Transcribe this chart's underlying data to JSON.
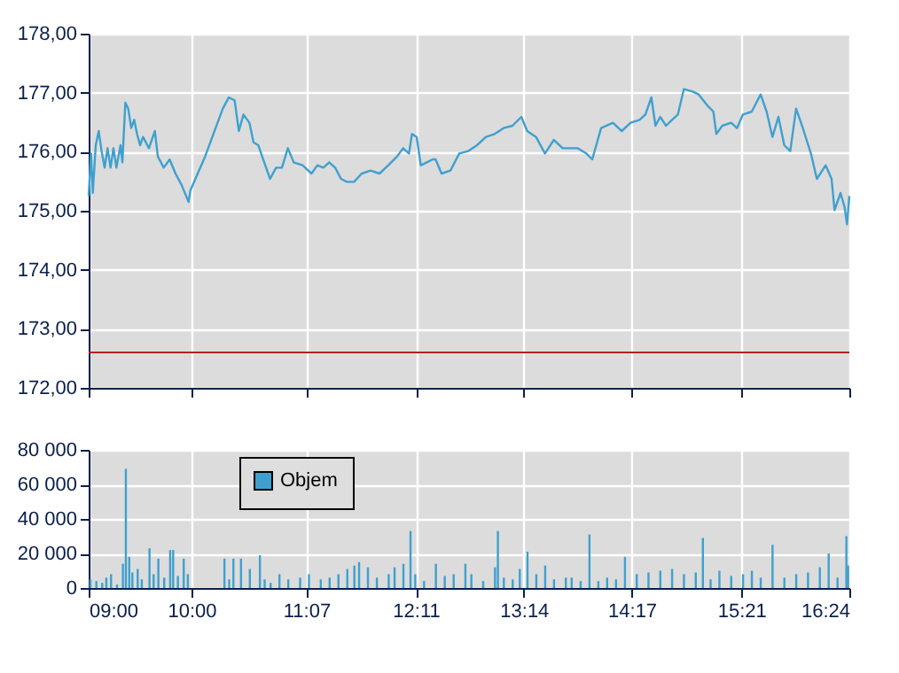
{
  "chart_data": [
    {
      "type": "line",
      "color": "#3fa0cf",
      "tick_labels": "y",
      "grid": true,
      "xlim": [
        9,
        16.4
      ],
      "xticks": [
        {
          "value": 9,
          "label": null
        },
        {
          "value": 10,
          "label": null
        },
        {
          "value": 11.1167,
          "label": null
        },
        {
          "value": 12.1833,
          "label": null
        },
        {
          "value": 13.2333,
          "label": null
        },
        {
          "value": 14.2833,
          "label": null
        },
        {
          "value": 15.35,
          "label": null
        },
        {
          "value": 16.4,
          "label": null
        }
      ],
      "ylim": [
        172,
        178
      ],
      "yticks": [
        {
          "value": 172,
          "label": "172,00"
        },
        {
          "value": 173,
          "label": "173,00"
        },
        {
          "value": 174,
          "label": "174,00"
        },
        {
          "value": 175,
          "label": "175,00"
        },
        {
          "value": 176,
          "label": "176,00"
        },
        {
          "value": 177,
          "label": "177,00"
        },
        {
          "value": 178,
          "label": "178,00"
        }
      ],
      "ref_lines": [
        {
          "axis": "y",
          "value": 172.6,
          "color": "#b22222"
        }
      ],
      "x": [
        9.0,
        9.023,
        9.04,
        9.069,
        9.098,
        9.126,
        9.155,
        9.184,
        9.213,
        9.241,
        9.27,
        9.31,
        9.328,
        9.357,
        9.385,
        9.414,
        9.443,
        9.471,
        9.5,
        9.529,
        9.586,
        9.644,
        9.673,
        9.73,
        9.788,
        9.845,
        9.903,
        9.972,
        9.989,
        10.133,
        10.305,
        10.363,
        10.42,
        10.461,
        10.506,
        10.564,
        10.604,
        10.65,
        10.708,
        10.765,
        10.823,
        10.88,
        10.938,
        10.995,
        11.081,
        11.168,
        11.225,
        11.283,
        11.34,
        11.398,
        11.455,
        11.513,
        11.582,
        11.656,
        11.743,
        11.829,
        11.915,
        12.001,
        12.059,
        12.116,
        12.145,
        12.191,
        12.231,
        12.289,
        12.346,
        12.375,
        12.433,
        12.519,
        12.605,
        12.691,
        12.778,
        12.864,
        12.95,
        13.036,
        13.123,
        13.209,
        13.266,
        13.352,
        13.439,
        13.525,
        13.611,
        13.755,
        13.841,
        13.899,
        13.985,
        14.1,
        14.186,
        14.272,
        14.359,
        14.416,
        14.474,
        14.514,
        14.56,
        14.617,
        14.675,
        14.732,
        14.79,
        14.876,
        14.934,
        15.02,
        15.077,
        15.106,
        15.164,
        15.25,
        15.307,
        15.365,
        15.451,
        15.537,
        15.595,
        15.652,
        15.71,
        15.767,
        15.825,
        15.882,
        15.94,
        16.026,
        16.084,
        16.17,
        16.227,
        16.256,
        16.314,
        16.354,
        16.377,
        16.4
      ],
      "values": [
        175.25,
        175.97,
        175.3,
        176.11,
        176.35,
        176.01,
        175.73,
        176.06,
        175.73,
        176.06,
        175.73,
        176.11,
        175.82,
        176.83,
        176.73,
        176.4,
        176.54,
        176.3,
        176.11,
        176.25,
        176.06,
        176.35,
        175.92,
        175.73,
        175.87,
        175.63,
        175.44,
        175.15,
        175.34,
        175.92,
        176.73,
        176.92,
        176.87,
        176.35,
        176.63,
        176.49,
        176.16,
        176.11,
        175.82,
        175.54,
        175.73,
        175.73,
        176.06,
        175.82,
        175.77,
        175.63,
        175.77,
        175.73,
        175.82,
        175.73,
        175.54,
        175.49,
        175.49,
        175.63,
        175.68,
        175.63,
        175.77,
        175.92,
        176.06,
        175.97,
        176.3,
        176.25,
        175.77,
        175.82,
        175.87,
        175.87,
        175.63,
        175.68,
        175.97,
        176.01,
        176.11,
        176.25,
        176.3,
        176.4,
        176.44,
        176.59,
        176.35,
        176.25,
        175.97,
        176.2,
        176.06,
        176.06,
        175.97,
        175.87,
        176.4,
        176.49,
        176.35,
        176.49,
        176.54,
        176.63,
        176.92,
        176.44,
        176.59,
        176.44,
        176.54,
        176.63,
        177.06,
        177.02,
        176.97,
        176.78,
        176.68,
        176.3,
        176.44,
        176.49,
        176.4,
        176.63,
        176.68,
        176.97,
        176.68,
        176.25,
        176.59,
        176.11,
        176.01,
        176.73,
        176.44,
        175.97,
        175.54,
        175.77,
        175.54,
        175.01,
        175.3,
        175.06,
        174.77,
        175.25
      ]
    },
    {
      "type": "bar",
      "grid": true,
      "legend": "top left",
      "xlim": [
        9,
        16.4
      ],
      "xticks": [
        {
          "value": 9,
          "label": "09:00"
        },
        {
          "value": 10,
          "label": "10:00"
        },
        {
          "value": 11.1167,
          "label": "11:07"
        },
        {
          "value": 12.1833,
          "label": "12:11"
        },
        {
          "value": 13.2333,
          "label": "13:14"
        },
        {
          "value": 14.2833,
          "label": "14:17"
        },
        {
          "value": 15.35,
          "label": "15:21"
        },
        {
          "value": 16.4,
          "label": "16:24"
        }
      ],
      "ylim": [
        0,
        80000
      ],
      "yticks": [
        0,
        {
          "value": 20000,
          "label": "20 000"
        },
        {
          "value": 40000,
          "label": "40 000"
        },
        {
          "value": 60000,
          "label": "60 000"
        },
        {
          "value": 80000,
          "label": "80 000"
        }
      ],
      "x": [
        9.017,
        9.075,
        9.132,
        9.172,
        9.218,
        9.276,
        9.333,
        9.362,
        9.395,
        9.425,
        9.477,
        9.517,
        9.592,
        9.632,
        9.678,
        9.735,
        9.793,
        9.822,
        9.868,
        9.925,
        9.965,
        10.321,
        10.367,
        10.408,
        10.482,
        10.568,
        10.666,
        10.712,
        10.77,
        10.856,
        10.942,
        11.057,
        11.143,
        11.258,
        11.344,
        11.43,
        11.516,
        11.585,
        11.631,
        11.717,
        11.804,
        11.919,
        11.976,
        12.062,
        12.131,
        12.177,
        12.263,
        12.378,
        12.464,
        12.551,
        12.665,
        12.723,
        12.838,
        12.953,
        12.981,
        13.039,
        13.125,
        13.194,
        13.269,
        13.355,
        13.441,
        13.527,
        13.642,
        13.699,
        13.786,
        13.872,
        13.958,
        14.044,
        14.13,
        14.217,
        14.332,
        14.446,
        14.561,
        14.676,
        14.791,
        14.906,
        14.975,
        15.05,
        15.136,
        15.251,
        15.366,
        15.452,
        15.538,
        15.653,
        15.768,
        15.883,
        15.998,
        16.113,
        16.199,
        16.285,
        16.371,
        16.388
      ],
      "series": [
        {
          "name": "Objem",
          "color": "#3fa0cf",
          "values": [
            5000,
            4000,
            3000,
            6000,
            8000,
            2000,
            14000,
            69000,
            18000,
            9000,
            11000,
            5000,
            23000,
            8000,
            17000,
            6000,
            22000,
            22000,
            7000,
            17000,
            8000,
            17000,
            5000,
            17000,
            17000,
            11000,
            19000,
            5000,
            3000,
            8000,
            5000,
            6000,
            8000,
            5000,
            6000,
            8000,
            11000,
            13000,
            15000,
            12000,
            6000,
            8000,
            12000,
            14000,
            33000,
            8000,
            4000,
            14000,
            7000,
            8000,
            14000,
            8000,
            4000,
            12000,
            33000,
            6000,
            5000,
            11000,
            21000,
            8000,
            13000,
            5000,
            6000,
            6000,
            4000,
            31000,
            4000,
            6000,
            5000,
            18000,
            8000,
            9000,
            10000,
            11000,
            8000,
            9000,
            29000,
            5000,
            10000,
            7000,
            8000,
            10000,
            6000,
            25000,
            6000,
            8000,
            9000,
            12000,
            20000,
            6000,
            30000,
            13000
          ]
        }
      ]
    }
  ]
}
